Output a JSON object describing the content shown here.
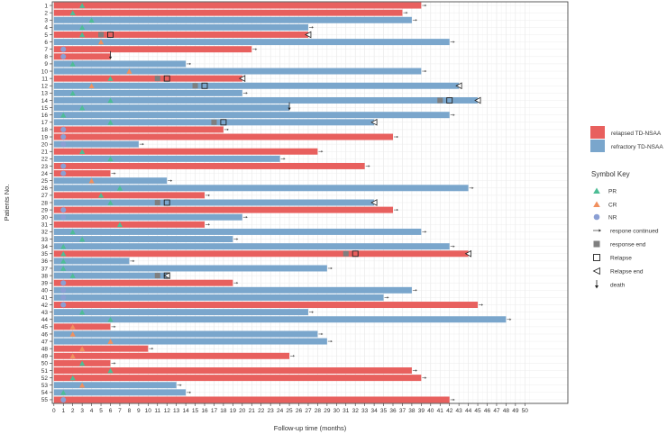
{
  "chart_data": {
    "type": "swimmer",
    "title": "",
    "xlabel": "Follow-up time (months)",
    "ylabel": "Patients No.",
    "xlim": [
      0,
      50
    ],
    "x_ticks": [
      0,
      1,
      2,
      3,
      4,
      5,
      6,
      7,
      8,
      9,
      10,
      11,
      12,
      13,
      14,
      15,
      16,
      17,
      18,
      19,
      20,
      21,
      22,
      23,
      24,
      25,
      26,
      27,
      28,
      29,
      30,
      31,
      32,
      33,
      34,
      35,
      36,
      37,
      38,
      39,
      40,
      41,
      42,
      43,
      44,
      45,
      46,
      47,
      48,
      49,
      50
    ],
    "grid": true,
    "colors": {
      "relapsed": "#e8605e",
      "refractory": "#7aa6cc",
      "PR": "#4dbd95",
      "CR": "#f1905e",
      "NR": "#8b9fd4",
      "end_marker": "#7f7f7f",
      "text": "#333333"
    },
    "group_legend": {
      "relapsed": "relapsed TD-NSAA",
      "refractory": "refractory TD-NSAA"
    },
    "symbol_key": {
      "title": "Symbol Key",
      "PR": "PR",
      "CR": "CR",
      "NR": "NR",
      "continued": "respone continued",
      "response_end": "response end",
      "relapse": "Relapse",
      "relapse_end": "Relapse end",
      "death": "death"
    },
    "patients": [
      {
        "id": "1",
        "group": "relapsed",
        "duration": 39,
        "response": "PR",
        "response_time": 3,
        "arrow": true
      },
      {
        "id": "2",
        "group": "relapsed",
        "duration": 37,
        "response": "PR",
        "response_time": 2,
        "arrow": true
      },
      {
        "id": "3",
        "group": "refractory",
        "duration": 38,
        "response": "PR",
        "response_time": 4,
        "arrow": true
      },
      {
        "id": "4",
        "group": "refractory",
        "duration": 27,
        "response": "PR",
        "response_time": 3,
        "arrow": true
      },
      {
        "id": "5",
        "group": "relapsed",
        "duration": 27,
        "response": "PR",
        "response_time": 3,
        "response_end": 5,
        "relapse": 6,
        "relapse_end": 27
      },
      {
        "id": "6",
        "group": "refractory",
        "duration": 42,
        "response": "CR",
        "response_time": 5,
        "arrow": true
      },
      {
        "id": "7",
        "group": "relapsed",
        "duration": 21,
        "response": "NR",
        "response_time": 1,
        "arrow": true
      },
      {
        "id": "8",
        "group": "relapsed",
        "duration": 6,
        "response": "NR",
        "response_time": 1,
        "death": 6
      },
      {
        "id": "9",
        "group": "refractory",
        "duration": 14,
        "response": "PR",
        "response_time": 2,
        "arrow": true
      },
      {
        "id": "10",
        "group": "refractory",
        "duration": 39,
        "response": "CR",
        "response_time": 8,
        "arrow": true
      },
      {
        "id": "11",
        "group": "relapsed",
        "duration": 20,
        "response": "PR",
        "response_time": 6,
        "response_end": 11,
        "relapse": 12,
        "relapse_end": 20
      },
      {
        "id": "12",
        "group": "refractory",
        "duration": 43,
        "response": "CR",
        "response_time": 4,
        "response_end": 15,
        "relapse": 16,
        "relapse_end": 43
      },
      {
        "id": "13",
        "group": "refractory",
        "duration": 20,
        "response": "PR",
        "response_time": 2,
        "arrow": true
      },
      {
        "id": "14",
        "group": "refractory",
        "duration": 45,
        "response": "PR",
        "response_time": 6,
        "response_end": 41,
        "relapse": 42,
        "relapse_end": 45
      },
      {
        "id": "15",
        "group": "refractory",
        "duration": 25,
        "response": "PR",
        "response_time": 3,
        "death": 25
      },
      {
        "id": "16",
        "group": "refractory",
        "duration": 42,
        "response": "PR",
        "response_time": 1,
        "arrow": true
      },
      {
        "id": "17",
        "group": "refractory",
        "duration": 34,
        "response": "PR",
        "response_time": 6,
        "response_end": 17,
        "relapse": 18,
        "relapse_end": 34
      },
      {
        "id": "18",
        "group": "relapsed",
        "duration": 18,
        "response": "NR",
        "response_time": 1,
        "arrow": true
      },
      {
        "id": "19",
        "group": "relapsed",
        "duration": 36,
        "response": "NR",
        "response_time": 1,
        "arrow": true
      },
      {
        "id": "20",
        "group": "refractory",
        "duration": 9,
        "response": "NR",
        "response_time": 1,
        "arrow": true
      },
      {
        "id": "21",
        "group": "relapsed",
        "duration": 28,
        "response": "PR",
        "response_time": 3,
        "arrow": true
      },
      {
        "id": "22",
        "group": "refractory",
        "duration": 24,
        "response": "PR",
        "response_time": 6,
        "arrow": true
      },
      {
        "id": "23",
        "group": "relapsed",
        "duration": 33,
        "response": "NR",
        "response_time": 1,
        "arrow": true
      },
      {
        "id": "24",
        "group": "relapsed",
        "duration": 6,
        "response": "NR",
        "response_time": 1,
        "arrow": true
      },
      {
        "id": "25",
        "group": "refractory",
        "duration": 12,
        "response": "CR",
        "response_time": 4,
        "arrow": true
      },
      {
        "id": "26",
        "group": "refractory",
        "duration": 44,
        "response": "PR",
        "response_time": 7,
        "arrow": true
      },
      {
        "id": "27",
        "group": "relapsed",
        "duration": 16,
        "response": "PR",
        "response_time": 5,
        "arrow": true
      },
      {
        "id": "28",
        "group": "refractory",
        "duration": 34,
        "response": "PR",
        "response_time": 6,
        "response_end": 11,
        "relapse": 12,
        "relapse_end": 34
      },
      {
        "id": "29",
        "group": "relapsed",
        "duration": 36,
        "response": "NR",
        "response_time": 1,
        "arrow": true
      },
      {
        "id": "30",
        "group": "refractory",
        "duration": 20,
        "response": "NR",
        "response_time": 1,
        "arrow": true
      },
      {
        "id": "31",
        "group": "relapsed",
        "duration": 16,
        "response": "PR",
        "response_time": 7,
        "arrow": true
      },
      {
        "id": "32",
        "group": "refractory",
        "duration": 39,
        "response": "PR",
        "response_time": 2,
        "arrow": true
      },
      {
        "id": "33",
        "group": "refractory",
        "duration": 19,
        "response": "PR",
        "response_time": 3,
        "arrow": true
      },
      {
        "id": "34",
        "group": "refractory",
        "duration": 42,
        "response": "PR",
        "response_time": 1,
        "arrow": true
      },
      {
        "id": "35",
        "group": "relapsed",
        "duration": 44,
        "response": "PR",
        "response_time": 1,
        "response_end": 31,
        "relapse": 32,
        "relapse_end": 44
      },
      {
        "id": "36",
        "group": "refractory",
        "duration": 8,
        "response": "PR",
        "response_time": 1,
        "arrow": true
      },
      {
        "id": "37",
        "group": "refractory",
        "duration": 29,
        "response": "PR",
        "response_time": 1,
        "arrow": true
      },
      {
        "id": "38",
        "group": "refractory",
        "duration": 12,
        "response": "PR",
        "response_time": 2,
        "response_end": 11,
        "relapse": 12,
        "relapse_end": 12
      },
      {
        "id": "39",
        "group": "relapsed",
        "duration": 19,
        "response": "NR",
        "response_time": 1,
        "arrow": true
      },
      {
        "id": "40",
        "group": "refractory",
        "duration": 38,
        "response": "NR",
        "response_time": 1,
        "arrow": true
      },
      {
        "id": "41",
        "group": "refractory",
        "duration": 35,
        "response": "NR",
        "response_time": 1,
        "arrow": true
      },
      {
        "id": "42",
        "group": "relapsed",
        "duration": 45,
        "response": "NR",
        "response_time": 1,
        "arrow": true
      },
      {
        "id": "43",
        "group": "refractory",
        "duration": 27,
        "response": "PR",
        "response_time": 3,
        "arrow": true
      },
      {
        "id": "44",
        "group": "refractory",
        "duration": 48,
        "response": "PR",
        "response_time": 6,
        "arrow": true
      },
      {
        "id": "45",
        "group": "relapsed",
        "duration": 6,
        "response": "CR",
        "response_time": 2,
        "arrow": true
      },
      {
        "id": "46",
        "group": "refractory",
        "duration": 28,
        "response": "CR",
        "response_time": 2,
        "arrow": true
      },
      {
        "id": "47",
        "group": "refractory",
        "duration": 29,
        "response": "CR",
        "response_time": 6,
        "arrow": true
      },
      {
        "id": "48",
        "group": "relapsed",
        "duration": 10,
        "response": "CR",
        "response_time": 3,
        "arrow": true
      },
      {
        "id": "49",
        "group": "relapsed",
        "duration": 25,
        "response": "CR",
        "response_time": 2,
        "arrow": true
      },
      {
        "id": "50",
        "group": "relapsed",
        "duration": 6,
        "response": "PR",
        "response_time": 3,
        "arrow": true
      },
      {
        "id": "51",
        "group": "relapsed",
        "duration": 38,
        "response": "PR",
        "response_time": 6,
        "arrow": true
      },
      {
        "id": "52",
        "group": "relapsed",
        "duration": 39,
        "response": "PR",
        "response_time": 2,
        "arrow": true
      },
      {
        "id": "53",
        "group": "refractory",
        "duration": 13,
        "response": "CR",
        "response_time": 3,
        "arrow": true
      },
      {
        "id": "54",
        "group": "refractory",
        "duration": 14,
        "response": "PR",
        "response_time": 1,
        "arrow": true
      },
      {
        "id": "55",
        "group": "relapsed",
        "duration": 42,
        "response": "NR",
        "response_time": 1,
        "arrow": true
      }
    ]
  }
}
